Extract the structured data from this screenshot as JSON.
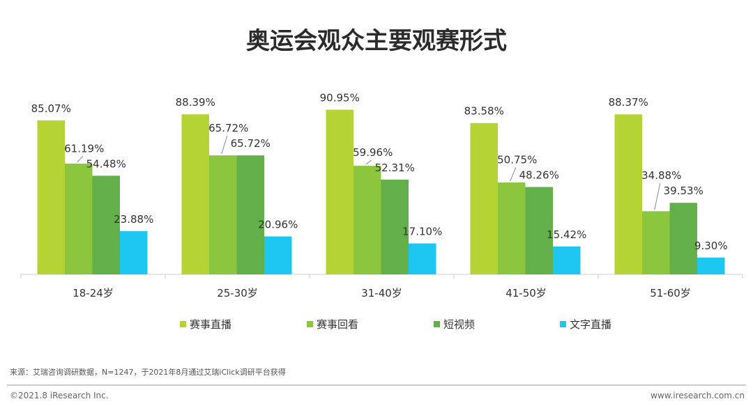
{
  "title": "奥运会观众主要观赛形式",
  "source_note": "来源：艾瑞咨询调研数据，N=1247，于2021年8月通过艾瑞iClick调研平台获得",
  "footer": {
    "copyright": "©2021.8 iResearch Inc.",
    "website": "www.iresearch.com.cn"
  },
  "colors": {
    "series": [
      "#b5d334",
      "#8cc63f",
      "#63b04a",
      "#1ec7f0"
    ],
    "axis": "#cccccc",
    "leader": "#888888",
    "footer_rule": "#999999"
  },
  "chart_data": {
    "type": "bar",
    "title": "奥运会观众主要观赛形式",
    "xlabel": "",
    "ylabel": "",
    "categories": [
      "18-24岁",
      "25-30岁",
      "31-40岁",
      "41-50岁",
      "51-60岁"
    ],
    "series": [
      {
        "name": "赛事直播",
        "values": [
          85.07,
          88.39,
          90.95,
          83.58,
          88.37
        ],
        "labels": [
          "85.07%",
          "88.39%",
          "90.95%",
          "83.58%",
          "88.37%"
        ]
      },
      {
        "name": "赛事回看",
        "values": [
          61.19,
          65.72,
          59.96,
          50.75,
          34.88
        ],
        "labels": [
          "61.19%",
          "65.72%",
          "59.96%",
          "50.75%",
          "34.88%"
        ]
      },
      {
        "name": "短视频",
        "values": [
          54.48,
          65.72,
          52.31,
          48.26,
          39.53
        ],
        "labels": [
          "54.48%",
          "65.72%",
          "52.31%",
          "48.26%",
          "39.53%"
        ]
      },
      {
        "name": "文字直播",
        "values": [
          23.88,
          20.96,
          17.1,
          15.42,
          9.3
        ],
        "labels": [
          "23.88%",
          "20.96%",
          "17.10%",
          "15.42%",
          "9.30%"
        ]
      }
    ],
    "ylim": [
      0,
      100
    ],
    "grid": false,
    "legend_position": "bottom",
    "value_unit": "%"
  }
}
